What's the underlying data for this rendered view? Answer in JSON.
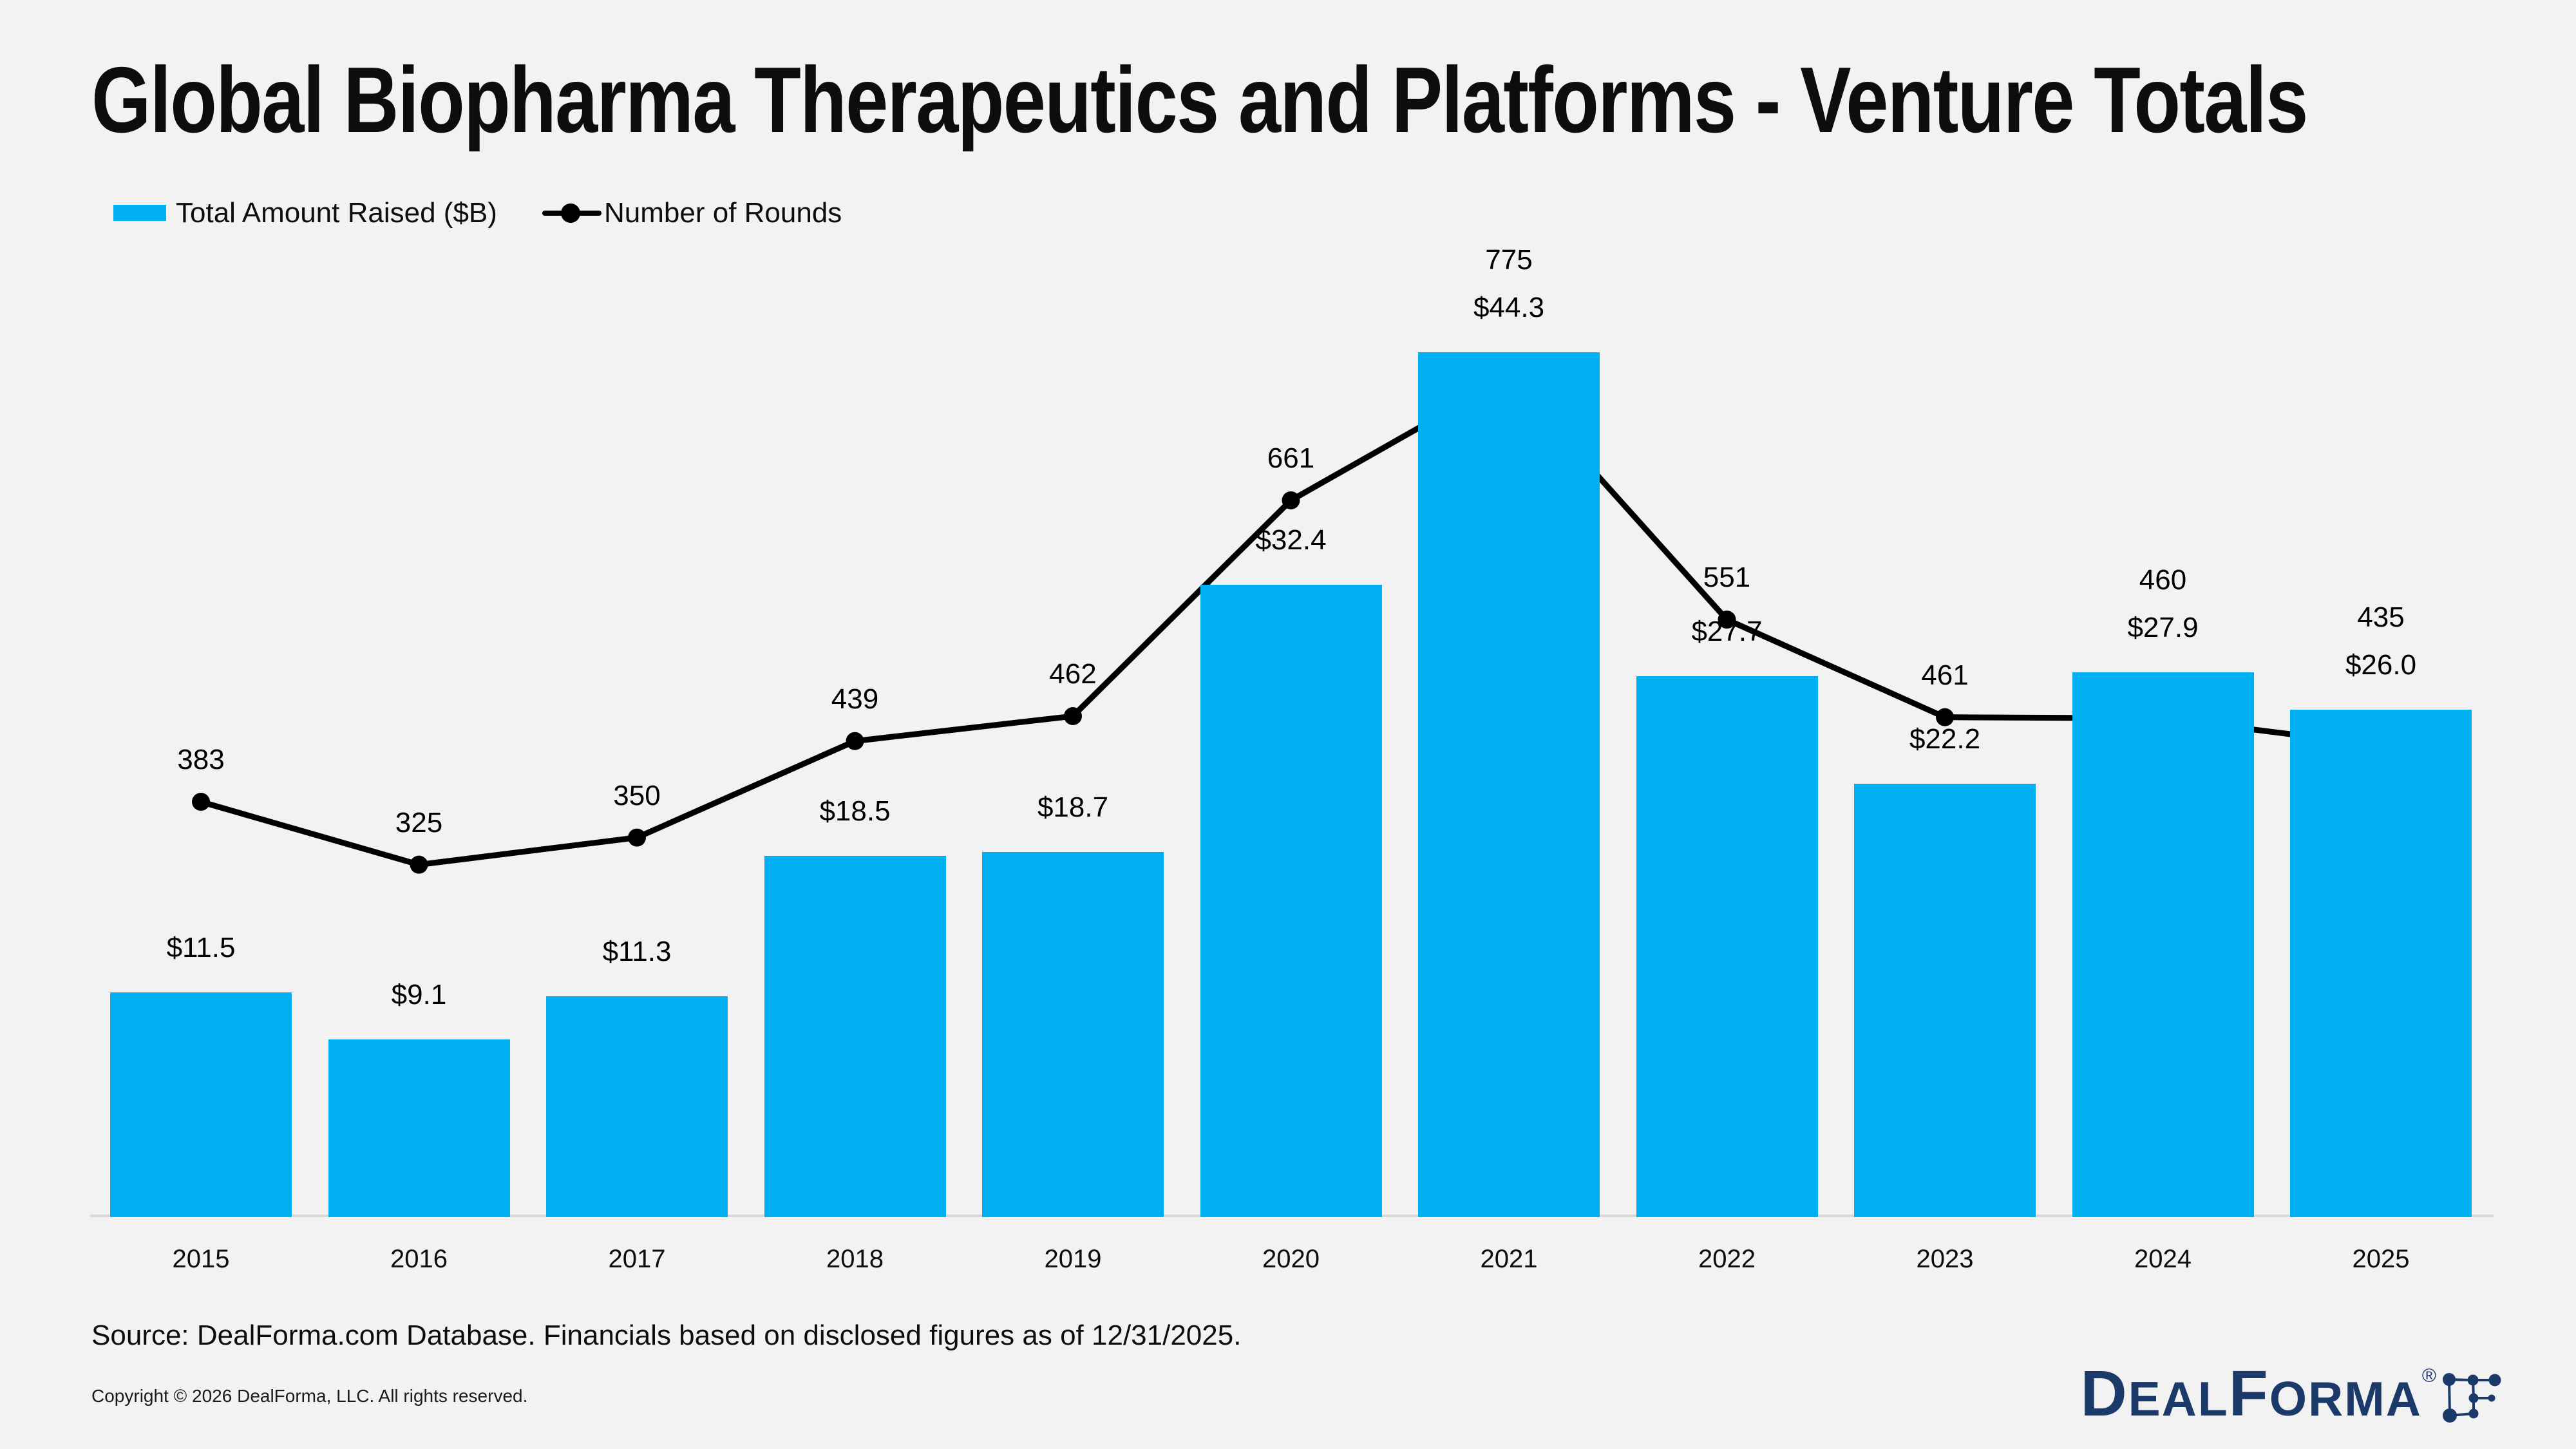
{
  "title": "Global Biopharma Therapeutics and Platforms - Venture Totals",
  "legend": [
    {
      "label": "Total Amount Raised ($B)",
      "marker": "square-swatch"
    },
    {
      "label": "Number of Rounds",
      "marker": "line-with-dot"
    }
  ],
  "chart_data": {
    "type": "bar+line",
    "title": "Global Biopharma Therapeutics and Platforms - Venture Totals",
    "categories": [
      "2015",
      "2016",
      "2017",
      "2018",
      "2019",
      "2020",
      "2021",
      "2022",
      "2023",
      "2024",
      "2025"
    ],
    "series": [
      {
        "name": "Total Amount Raised ($B)",
        "type": "bar",
        "values": [
          11.5,
          9.1,
          11.3,
          18.5,
          18.7,
          32.4,
          44.3,
          27.7,
          22.2,
          27.9,
          26.0
        ],
        "labels": [
          "$11.5",
          "$9.1",
          "$11.3",
          "$18.5",
          "$18.7",
          "$32.4",
          "$44.3",
          "$27.7",
          "$22.2",
          "$27.9",
          "$26.0"
        ]
      },
      {
        "name": "Number of Rounds",
        "type": "line",
        "values": [
          383,
          325,
          350,
          439,
          462,
          661,
          775,
          551,
          461,
          460,
          435
        ]
      }
    ],
    "ylim_bars": [
      0,
      48
    ],
    "ylim_rounds": [
      0,
      850
    ],
    "grid": false,
    "legend_position": "top-left",
    "colors": {
      "bar": "#00b0f0",
      "line": "#000000",
      "background": "#f2f2f2",
      "axis": "#d9d9d9",
      "text": "#0d0d0d"
    }
  },
  "source": "Source: DealForma.com Database. Financials based on disclosed figures as of 12/31/2025.",
  "copyright": "Copyright © 2026 DealForma, LLC. All rights reserved.",
  "logo": {
    "text": "DealForma",
    "registered": "®",
    "color": "#1b3a6a"
  }
}
